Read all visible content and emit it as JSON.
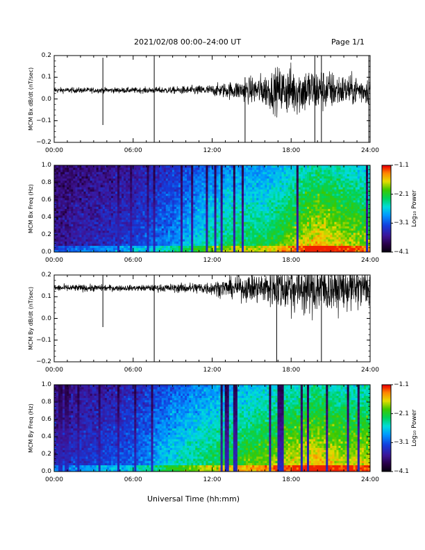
{
  "header": {
    "title": "2021/02/08   00:00–24:00 UT",
    "page": "Page 1/1"
  },
  "footer": {
    "xlabel": "Universal Time (hh:mm)"
  },
  "chart_data": [
    {
      "type": "line",
      "ylabel": "MCM Bx dB/dt (nT/sec)",
      "xlim": [
        0,
        24
      ],
      "ylim": [
        -0.2,
        0.2
      ],
      "xticks": [
        "00:00",
        "06:00",
        "12:00",
        "18:00",
        "24:00"
      ],
      "yticks": [
        "0.2",
        "0.1",
        "0.0",
        "−0.1",
        "−0.2"
      ],
      "baseline": 0.04,
      "envelope_hours": [
        0,
        3,
        6,
        9,
        12,
        14,
        16,
        17,
        18,
        19,
        20,
        21,
        22,
        24
      ],
      "envelope_amplitude": [
        0.02,
        0.02,
        0.02,
        0.025,
        0.04,
        0.07,
        0.12,
        0.16,
        0.18,
        0.17,
        0.16,
        0.14,
        0.11,
        0.1
      ],
      "spikes": [
        {
          "hour": 3.7,
          "min": -0.12,
          "max": 0.19
        },
        {
          "hour": 7.6,
          "min": -0.2,
          "max": 0.2
        },
        {
          "hour": 14.5,
          "min": -0.2,
          "max": 0.1
        },
        {
          "hour": 19.8,
          "min": -0.2,
          "max": 0.2
        },
        {
          "hour": 20.3,
          "min": -0.2,
          "max": 0.2
        },
        {
          "hour": 23.9,
          "min": -0.2,
          "max": 0.2
        }
      ]
    },
    {
      "type": "heatmap",
      "ylabel": "MCM Bx Freq (Hz)",
      "xlim": [
        0,
        24
      ],
      "ylim": [
        0,
        1.0
      ],
      "xticks": [
        "00:00",
        "06:00",
        "12:00",
        "18:00",
        "24:00"
      ],
      "yticks": [
        "1.0",
        "0.8",
        "0.6",
        "0.4",
        "0.2",
        "0.0"
      ],
      "colorbar": {
        "label": "Log₁₀ Power",
        "ticks": [
          "−1.1",
          "−2.1",
          "−3.1",
          "−4.1"
        ],
        "range": [
          -4.1,
          -1.1
        ]
      },
      "activity_hours": [
        0,
        6,
        9,
        12,
        14,
        16,
        18,
        20,
        22,
        24
      ],
      "activity_level": [
        0.15,
        0.25,
        0.35,
        0.5,
        0.55,
        0.55,
        0.65,
        0.75,
        0.7,
        0.65
      ]
    },
    {
      "type": "line",
      "ylabel": "MCM By dB/dt (nT/sec)",
      "xlim": [
        0,
        24
      ],
      "ylim": [
        -0.2,
        0.2
      ],
      "xticks": [
        "00:00",
        "06:00",
        "12:00",
        "18:00",
        "24:00"
      ],
      "yticks": [
        "0.2",
        "0.1",
        "0.0",
        "−0.1",
        "−0.2"
      ],
      "baseline": 0.14,
      "envelope_hours": [
        0,
        3,
        6,
        9,
        12,
        14,
        16,
        17,
        18,
        19,
        20,
        21,
        22,
        24
      ],
      "envelope_amplitude": [
        0.025,
        0.025,
        0.02,
        0.03,
        0.05,
        0.08,
        0.12,
        0.15,
        0.18,
        0.2,
        0.2,
        0.18,
        0.16,
        0.14
      ],
      "spikes": [
        {
          "hour": 3.7,
          "min": -0.04,
          "max": 0.2
        },
        {
          "hour": 7.6,
          "min": -0.2,
          "max": 0.2
        },
        {
          "hour": 16.9,
          "min": -0.2,
          "max": 0.2
        },
        {
          "hour": 20.3,
          "min": -0.2,
          "max": 0.2
        }
      ]
    },
    {
      "type": "heatmap",
      "ylabel": "MCM By Freq (Hz)",
      "xlim": [
        0,
        24
      ],
      "ylim": [
        0,
        1.0
      ],
      "xticks": [
        "00:00",
        "06:00",
        "12:00",
        "18:00",
        "24:00"
      ],
      "yticks": [
        "1.0",
        "0.8",
        "0.6",
        "0.4",
        "0.2",
        "0.0"
      ],
      "colorbar": {
        "label": "Log₁₀ Power",
        "ticks": [
          "−1.1",
          "−2.1",
          "−3.1",
          "−4.1"
        ],
        "range": [
          -4.1,
          -1.1
        ]
      },
      "activity_hours": [
        0,
        6,
        9,
        12,
        14,
        16,
        18,
        20,
        22,
        24
      ],
      "activity_level": [
        0.2,
        0.3,
        0.45,
        0.55,
        0.6,
        0.65,
        0.7,
        0.75,
        0.7,
        0.7
      ]
    }
  ]
}
